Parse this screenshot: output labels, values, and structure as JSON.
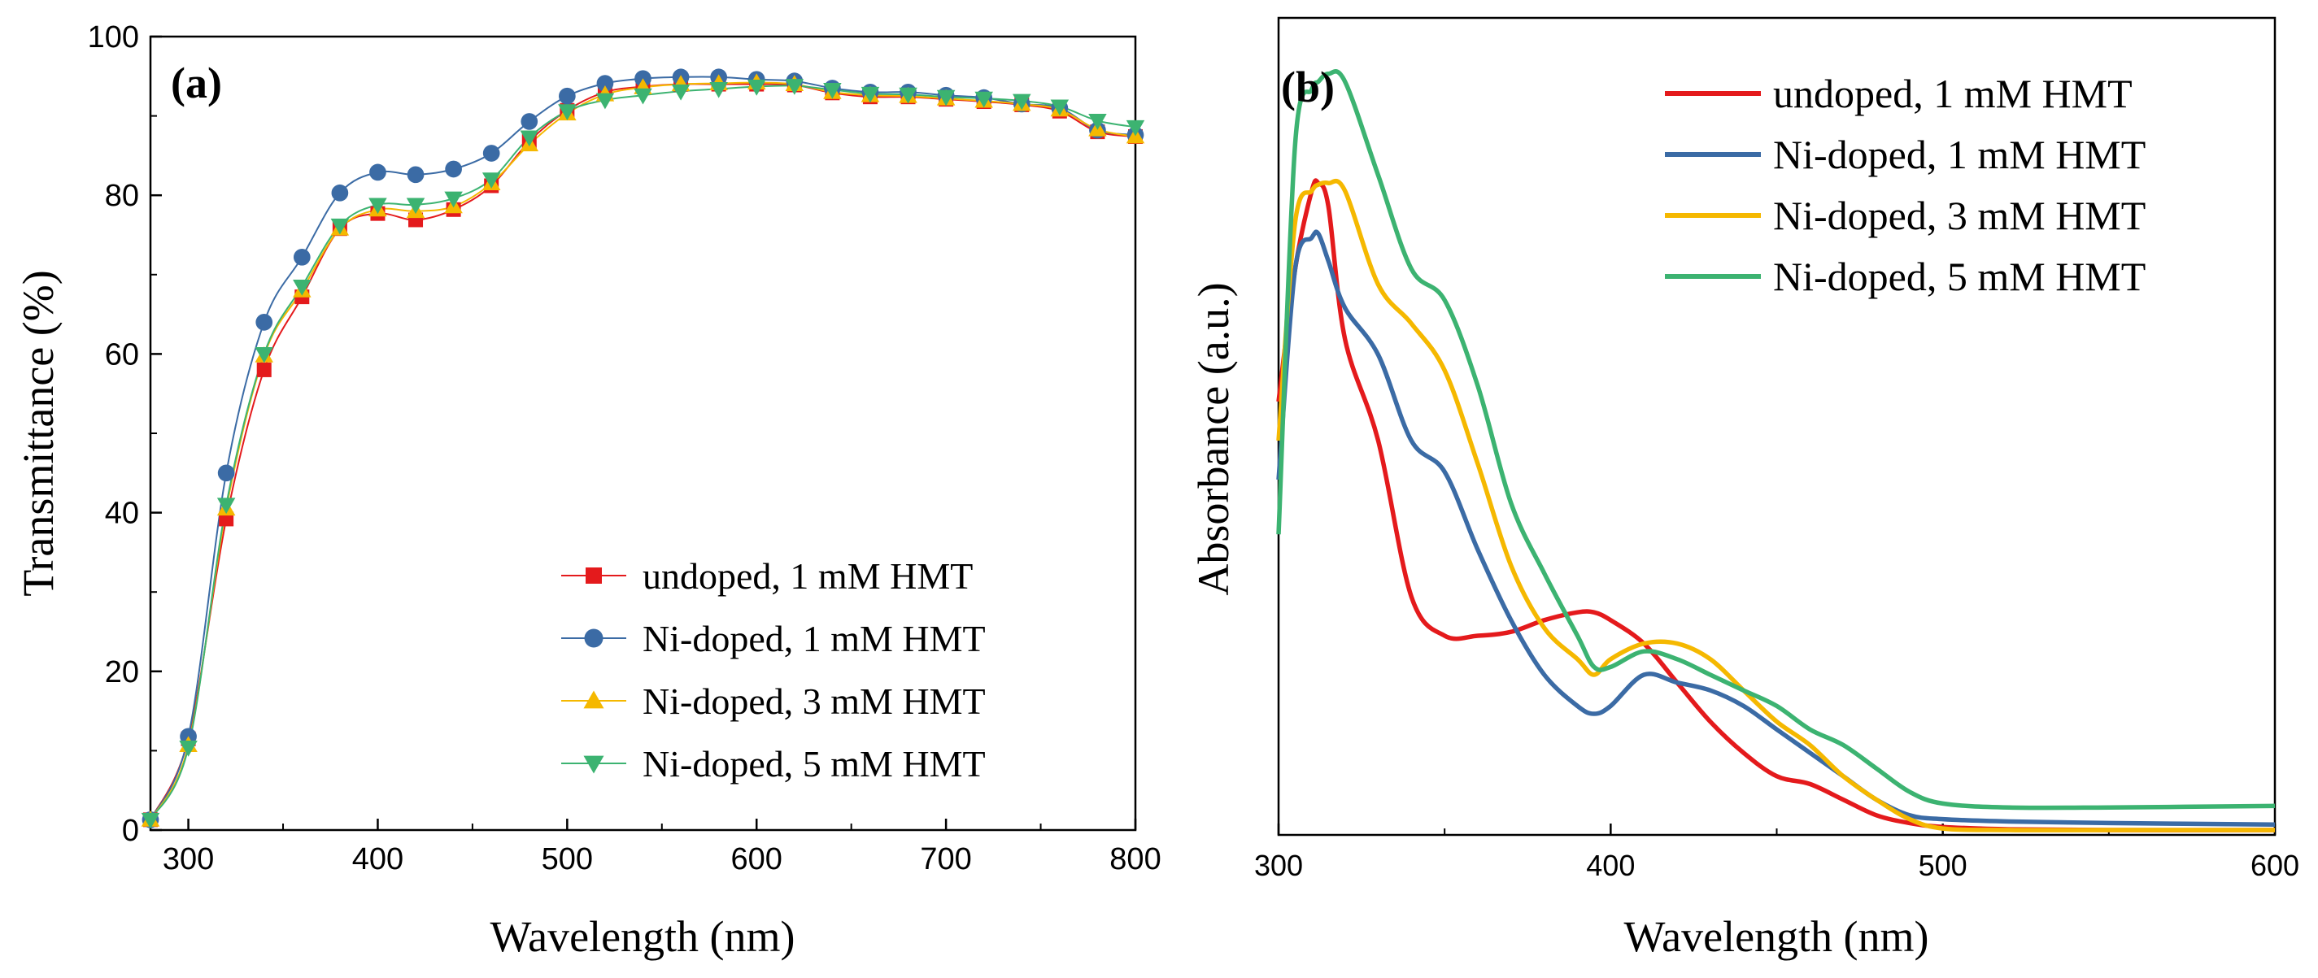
{
  "chart_data": [
    {
      "type": "line",
      "panel_label": "(a)",
      "xlabel": "Wavelength (nm)",
      "ylabel": "Transmittance (%)",
      "xlim": [
        280,
        800
      ],
      "ylim": [
        0,
        100
      ],
      "x_ticks": [
        "300",
        "400",
        "500",
        "600",
        "700",
        "800"
      ],
      "y_ticks": [
        "0",
        "20",
        "40",
        "60",
        "80",
        "100"
      ],
      "legend_position": "bottom-right",
      "x": [
        280,
        300,
        320,
        340,
        360,
        380,
        400,
        420,
        440,
        460,
        480,
        500,
        520,
        540,
        560,
        580,
        600,
        620,
        640,
        660,
        680,
        700,
        720,
        740,
        760,
        780,
        800
      ],
      "series": [
        {
          "name": "undoped, 1 mM HMT",
          "color": "#e41a1c",
          "marker": "square",
          "values": [
            1.3,
            11.5,
            39.2,
            58.0,
            67.2,
            75.8,
            77.7,
            76.9,
            78.2,
            81.2,
            86.8,
            90.7,
            93.0,
            93.7,
            94.0,
            94.0,
            94.0,
            93.9,
            92.9,
            92.4,
            92.4,
            92.1,
            91.8,
            91.4,
            90.6,
            88.0,
            87.4
          ]
        },
        {
          "name": "Ni-doped, 1 mM HMT",
          "color": "#3b6ba5",
          "marker": "circle",
          "values": [
            1.3,
            11.8,
            45.0,
            64.0,
            72.2,
            80.3,
            82.9,
            82.6,
            83.3,
            85.3,
            89.3,
            92.5,
            94.1,
            94.7,
            94.9,
            94.9,
            94.6,
            94.4,
            93.5,
            93.0,
            93.0,
            92.6,
            92.3,
            91.5,
            91.0,
            88.2,
            87.6
          ]
        },
        {
          "name": "Ni-doped, 3 mM HMT",
          "color": "#f5b800",
          "marker": "triangle-up",
          "values": [
            1.3,
            10.7,
            40.5,
            59.8,
            68.0,
            75.8,
            78.2,
            78.0,
            78.6,
            81.5,
            86.4,
            90.3,
            92.7,
            93.6,
            94.0,
            94.1,
            94.2,
            94.0,
            93.0,
            92.6,
            92.5,
            92.2,
            91.9,
            91.5,
            90.8,
            88.3,
            87.4
          ]
        },
        {
          "name": "Ni-doped, 5 mM HMT",
          "color": "#3cb371",
          "marker": "triangle-down",
          "values": [
            1.3,
            10.4,
            41.0,
            60.0,
            68.5,
            76.2,
            78.8,
            78.8,
            79.6,
            82.0,
            87.3,
            90.6,
            92.0,
            92.6,
            93.1,
            93.4,
            93.7,
            93.8,
            93.3,
            92.8,
            92.7,
            92.4,
            92.2,
            91.9,
            91.2,
            89.4,
            88.6
          ]
        }
      ]
    },
    {
      "type": "line",
      "panel_label": "(b)",
      "xlabel": "Wavelength (nm)",
      "ylabel": "Absorbance (a.u.)",
      "xlim": [
        300,
        600
      ],
      "ylim": [
        0,
        1
      ],
      "x_ticks": [
        "300",
        "400",
        "500",
        "600"
      ],
      "legend_position": "top-right",
      "x": [
        300,
        305,
        310,
        312,
        315,
        320,
        330,
        340,
        350,
        360,
        370,
        380,
        390,
        395,
        400,
        410,
        420,
        430,
        440,
        450,
        460,
        470,
        480,
        490,
        500,
        520,
        550,
        600
      ],
      "series": [
        {
          "name": "undoped, 1 mM HMT",
          "color": "#e41a1c",
          "values": [
            0.55,
            0.72,
            0.82,
            0.83,
            0.8,
            0.63,
            0.5,
            0.3,
            0.25,
            0.25,
            0.255,
            0.27,
            0.28,
            0.28,
            0.27,
            0.24,
            0.19,
            0.14,
            0.1,
            0.07,
            0.06,
            0.04,
            0.02,
            0.01,
            0.005,
            0.002,
            0.001,
            0.001
          ]
        },
        {
          "name": "Ni-doped, 1 mM HMT",
          "color": "#3b6ba5",
          "values": [
            0.45,
            0.72,
            0.76,
            0.765,
            0.73,
            0.67,
            0.61,
            0.5,
            0.46,
            0.36,
            0.27,
            0.2,
            0.16,
            0.15,
            0.16,
            0.2,
            0.19,
            0.18,
            0.16,
            0.13,
            0.1,
            0.07,
            0.04,
            0.02,
            0.015,
            0.012,
            0.01,
            0.008
          ]
        },
        {
          "name": "Ni-doped, 3 mM HMT",
          "color": "#f5b800",
          "values": [
            0.5,
            0.78,
            0.82,
            0.828,
            0.83,
            0.82,
            0.7,
            0.65,
            0.59,
            0.47,
            0.34,
            0.26,
            0.22,
            0.2,
            0.22,
            0.24,
            0.24,
            0.22,
            0.18,
            0.14,
            0.11,
            0.07,
            0.04,
            0.015,
            0.003,
            0.001,
            0.001,
            0.001
          ]
        },
        {
          "name": "Ni-doped, 5 mM HMT",
          "color": "#3cb371",
          "values": [
            0.38,
            0.88,
            0.95,
            0.96,
            0.97,
            0.96,
            0.84,
            0.72,
            0.68,
            0.57,
            0.42,
            0.33,
            0.25,
            0.21,
            0.21,
            0.23,
            0.22,
            0.2,
            0.18,
            0.16,
            0.13,
            0.11,
            0.08,
            0.05,
            0.035,
            0.03,
            0.03,
            0.032
          ]
        }
      ]
    }
  ]
}
